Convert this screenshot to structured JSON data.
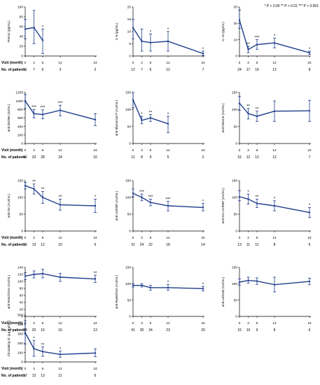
{
  "legend": "* P < 0.05 ** P < 0.01 *** P < 0.001",
  "chart_data": [
    {
      "type": "line",
      "ylabel": "IFN-α2 (pg/mL)",
      "yticks": [
        "0",
        "20",
        "40",
        "60",
        "80",
        "100"
      ],
      "ylim": [
        0,
        100
      ],
      "x": [
        0,
        3,
        6,
        12,
        24
      ],
      "xticks": [
        "0",
        "3",
        "6",
        "12",
        "24"
      ],
      "values": [
        55,
        58,
        32,
        null,
        null
      ],
      "err_low": [
        35,
        25,
        5,
        null,
        null
      ],
      "err_high": [
        75,
        93,
        55,
        null,
        null
      ],
      "sig": [
        "",
        "",
        "*",
        "",
        ""
      ],
      "visit_label": "Visit (month)",
      "patients_label": "No. of patients",
      "patients": [
        "11",
        "7",
        "6",
        "3",
        "2"
      ]
    },
    {
      "type": "line",
      "ylabel": "IL-6 (pg/mL)",
      "yticks": [
        "0",
        "5",
        "10",
        "15",
        "20"
      ],
      "ylim": [
        0,
        20
      ],
      "x": [
        0,
        3,
        6,
        12,
        24
      ],
      "xticks": [
        "0",
        "3",
        "6",
        "12",
        "24"
      ],
      "values": [
        11.5,
        6,
        5.5,
        6,
        1
      ],
      "err_low": [
        7,
        2,
        2,
        2,
        0.2
      ],
      "err_high": [
        15,
        11,
        9,
        10,
        2
      ],
      "sig": [
        "",
        "",
        "*",
        "*",
        "*"
      ],
      "visit_label": "Visit (month)",
      "patients_label": "No. of patients",
      "patients": [
        "12",
        "7",
        "6",
        "12",
        "7"
      ]
    },
    {
      "type": "line",
      "ylabel": "IL-10 (pg/mL)",
      "yticks": [
        "0",
        "10",
        "20",
        "30"
      ],
      "ylim": [
        0,
        30
      ],
      "x": [
        0,
        3,
        6,
        12,
        24
      ],
      "xticks": [
        "0",
        "3",
        "6",
        "12",
        "24"
      ],
      "values": [
        22,
        4,
        7,
        8,
        2
      ],
      "err_low": [
        17,
        2,
        4,
        5,
        1
      ],
      "err_high": [
        28,
        6,
        10,
        11,
        3
      ],
      "sig": [
        "",
        "**",
        "***",
        "*",
        "*"
      ],
      "visit_label": "Visit (month)",
      "patients_label": "No. of patients",
      "patients": [
        "24",
        "17",
        "16",
        "12",
        "8"
      ]
    },
    {
      "type": "line",
      "ylabel": "anti-dsDNA (IU/mL)",
      "yticks": [
        "0",
        "200",
        "400",
        "600",
        "800",
        "1000",
        "1200"
      ],
      "ylim": [
        0,
        1200
      ],
      "x": [
        0,
        3,
        6,
        12,
        24
      ],
      "xticks": [
        "0",
        "3",
        "6",
        "12",
        "24"
      ],
      "values": [
        1000,
        700,
        680,
        780,
        560
      ],
      "err_low": [
        820,
        600,
        580,
        650,
        420
      ],
      "err_high": [
        1150,
        800,
        790,
        900,
        700
      ],
      "sig": [
        "",
        "***",
        "***",
        "***",
        ""
      ],
      "visit_label": "Visit (month)",
      "patients_label": "No. of patients",
      "patients": [
        "42",
        "33",
        "28",
        "24",
        "16"
      ]
    },
    {
      "type": "line",
      "ylabel": "anti-ribosomal P (AU/mL)",
      "yticks": [
        "0",
        "50",
        "100",
        "150"
      ],
      "ylim": [
        0,
        150
      ],
      "x": [
        0,
        3,
        6,
        12,
        24
      ],
      "xticks": [
        "0",
        "3",
        "6",
        "12",
        "24"
      ],
      "values": [
        128,
        68,
        75,
        58,
        null
      ],
      "err_low": [
        105,
        58,
        65,
        32,
        null
      ],
      "err_high": [
        150,
        80,
        85,
        80,
        null
      ],
      "sig": [
        "",
        "*",
        "**",
        "*",
        ""
      ],
      "visit_label": "Visit (month)",
      "patients_label": "No. of patients",
      "patients": [
        "11",
        "8",
        "9",
        "5",
        "2"
      ]
    },
    {
      "type": "line",
      "ylabel": "anti-histone (AU/mL)",
      "yticks": [
        "0",
        "50",
        "100",
        "150"
      ],
      "ylim": [
        0,
        150
      ],
      "x": [
        0,
        3,
        6,
        12,
        24
      ],
      "xticks": [
        "0",
        "3",
        "6",
        "12",
        "24"
      ],
      "values": [
        118,
        88,
        80,
        95,
        96
      ],
      "err_low": [
        98,
        72,
        65,
        65,
        65
      ],
      "err_high": [
        138,
        103,
        95,
        125,
        127
      ],
      "sig": [
        "",
        "**",
        "**",
        "",
        ""
      ],
      "visit_label": "Visit (month)",
      "patients_label": "No. of patients",
      "patients": [
        "15",
        "12",
        "12",
        "12",
        "7"
      ]
    },
    {
      "type": "line",
      "ylabel": "anti-Sm (AU/mL)",
      "yticks": [
        "0",
        "50",
        "100",
        "150"
      ],
      "ylim": [
        0,
        150
      ],
      "x": [
        0,
        3,
        6,
        12,
        24
      ],
      "xticks": [
        "0",
        "3",
        "6",
        "12",
        "24"
      ],
      "values": [
        135,
        125,
        100,
        78,
        75
      ],
      "err_low": [
        125,
        110,
        82,
        62,
        55
      ],
      "err_high": [
        145,
        140,
        118,
        95,
        95
      ],
      "sig": [
        "",
        "**",
        "**",
        "**",
        "*"
      ],
      "visit_label": "Visit (month)",
      "patients_label": "No. of patients",
      "patients": [
        "16",
        "13",
        "12",
        "10",
        "6"
      ]
    },
    {
      "type": "line",
      "ylabel": "anti-U1RNP (AU/mL)",
      "yticks": [
        "0",
        "50",
        "100",
        "150"
      ],
      "ylim": [
        0,
        150
      ],
      "x": [
        0,
        3,
        6,
        12,
        24
      ],
      "xticks": [
        "0",
        "3",
        "6",
        "12",
        "24"
      ],
      "values": [
        112,
        100,
        85,
        75,
        70
      ],
      "err_low": [
        102,
        90,
        75,
        60,
        60
      ],
      "err_high": [
        125,
        110,
        95,
        88,
        82
      ],
      "sig": [
        "",
        "***",
        "***",
        "***",
        "*"
      ],
      "visit_label": "Visit (month)",
      "patients_label": "No. of patients",
      "patients": [
        "31",
        "24",
        "22",
        "18",
        "14"
      ]
    },
    {
      "type": "line",
      "ylabel": "anti-Sm-U1RNP (AU/mL)",
      "yticks": [
        "0",
        "50",
        "100",
        "150"
      ],
      "ylim": [
        0,
        150
      ],
      "x": [
        0,
        3,
        6,
        12,
        24
      ],
      "xticks": [
        "0",
        "3",
        "6",
        "12",
        "24"
      ],
      "values": [
        102,
        95,
        82,
        75,
        55
      ],
      "err_low": [
        90,
        80,
        70,
        60,
        40
      ],
      "err_high": [
        120,
        110,
        95,
        90,
        70
      ],
      "sig": [
        "",
        "*",
        "**",
        "*",
        "*"
      ],
      "visit_label": "Visit (month)",
      "patients_label": "No. of patients",
      "patients": [
        "13",
        "11",
        "11",
        "8",
        "6"
      ]
    },
    {
      "type": "line",
      "ylabel": "anti-Ro52/SSA (AU/mL)",
      "yticks": [
        "0",
        "20",
        "40",
        "60",
        "80",
        "100",
        "120",
        "140"
      ],
      "ylim": [
        0,
        140
      ],
      "x": [
        0,
        3,
        6,
        12,
        24
      ],
      "xticks": [
        "0",
        "3",
        "6",
        "12",
        "24"
      ],
      "values": [
        115,
        120,
        122,
        112,
        107
      ],
      "err_low": [
        105,
        110,
        110,
        100,
        97
      ],
      "err_high": [
        125,
        130,
        135,
        123,
        118
      ],
      "sig": [
        "",
        "",
        "",
        "",
        "**"
      ],
      "visit_label": "Visit (month)",
      "patients_label": "No. of patients",
      "patients": [
        "28",
        "20",
        "16",
        "16",
        "13"
      ]
    },
    {
      "type": "line",
      "ylabel": "anti-Ro60/SSA (AU/mL)",
      "yticks": [
        "0",
        "50",
        "100",
        "150"
      ],
      "ylim": [
        0,
        150
      ],
      "x": [
        0,
        3,
        6,
        12,
        24
      ],
      "xticks": [
        "0",
        "3",
        "6",
        "12",
        "24"
      ],
      "values": [
        95,
        95,
        88,
        88,
        85
      ],
      "err_low": [
        90,
        90,
        80,
        80,
        78
      ],
      "err_high": [
        100,
        100,
        95,
        98,
        92
      ],
      "sig": [
        "",
        "",
        "",
        "*",
        "*"
      ],
      "visit_label": "Visit (month)",
      "patients_label": "No. of patients",
      "patients": [
        "41",
        "30",
        "24",
        "23",
        "20"
      ]
    },
    {
      "type": "line",
      "ylabel": "anti-La/SSB (AU/mL)",
      "yticks": [
        "0",
        "50",
        "100",
        "150"
      ],
      "ylim": [
        0,
        150
      ],
      "x": [
        0,
        3,
        6,
        12,
        24
      ],
      "xticks": [
        "0",
        "3",
        "6",
        "12",
        "24"
      ],
      "values": [
        105,
        110,
        108,
        97,
        107
      ],
      "err_low": [
        95,
        102,
        98,
        75,
        97
      ],
      "err_high": [
        115,
        120,
        118,
        120,
        117
      ],
      "sig": [
        "",
        "",
        "",
        "",
        ""
      ],
      "visit_label": "Visit (month)",
      "patients_label": "No. of patients",
      "patients": [
        "15",
        "10",
        "9",
        "8",
        "6"
      ]
    },
    {
      "type": "line",
      "ylabel": "Circulating IC (μg Eq/mL)",
      "yticks": [
        "0",
        "100",
        "200",
        "300",
        "400",
        "500"
      ],
      "ylim": [
        0,
        500
      ],
      "x": [
        0,
        3,
        6,
        12,
        24
      ],
      "xticks": [
        "0",
        "3",
        "6",
        "12",
        "24"
      ],
      "values": [
        310,
        140,
        110,
        80,
        95
      ],
      "err_low": [
        190,
        60,
        60,
        50,
        55
      ],
      "err_high": [
        440,
        230,
        160,
        115,
        140
      ],
      "sig": [
        "",
        "*",
        "**",
        "*",
        ""
      ],
      "visit_label": "Visit (month)",
      "patients_label": "No. of patients",
      "patients": [
        "17",
        "13",
        "13",
        "11",
        "6"
      ]
    }
  ]
}
